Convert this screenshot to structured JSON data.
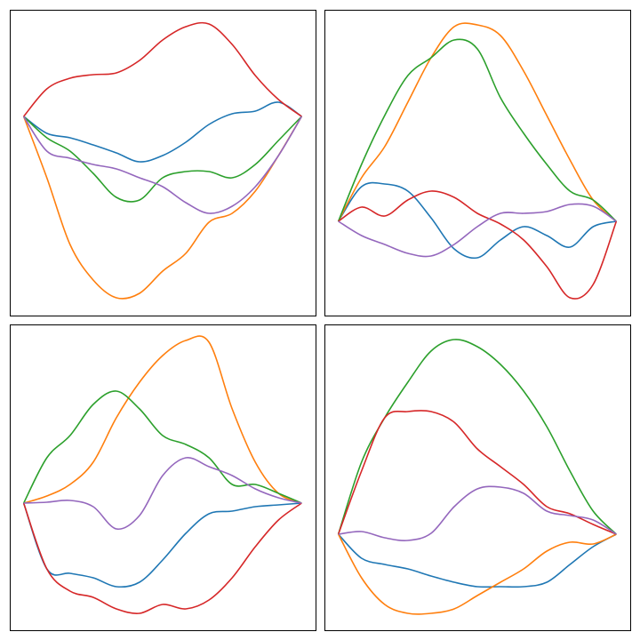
{
  "chart_data": [
    {
      "type": "line",
      "x": [
        0,
        1,
        2,
        3,
        4,
        5,
        6,
        7,
        8,
        9,
        10,
        11,
        12
      ],
      "xlim": [
        -0.6,
        12.6
      ],
      "ylim": [
        -22.4,
        12
      ],
      "series": [
        {
          "color": "#1f77b4",
          "values": [
            0,
            -1.9,
            -2.4,
            -3.2,
            -4.1,
            -5.1,
            -4.4,
            -2.9,
            -0.9,
            0.3,
            0.6,
            1.6,
            0
          ]
        },
        {
          "color": "#ff7f0e",
          "values": [
            0,
            -6.9,
            -14.4,
            -18.4,
            -20.4,
            -19.9,
            -17.4,
            -15.4,
            -11.9,
            -10.9,
            -8.4,
            -4.4,
            0
          ]
        },
        {
          "color": "#2ca02c",
          "values": [
            0,
            -2.4,
            -3.9,
            -6.4,
            -9.1,
            -9.4,
            -6.9,
            -6.2,
            -6.2,
            -6.9,
            -5.4,
            -2.7,
            0
          ]
        },
        {
          "color": "#d62728",
          "values": [
            0,
            3.1,
            4.3,
            4.7,
            4.9,
            6.3,
            8.6,
            10.1,
            10.4,
            8.1,
            4.6,
            1.9,
            0
          ]
        },
        {
          "color": "#9467bd",
          "values": [
            0,
            -3.9,
            -4.7,
            -5.4,
            -5.9,
            -6.9,
            -7.9,
            -9.7,
            -10.9,
            -10.1,
            -7.9,
            -4.4,
            0
          ]
        }
      ]
    },
    {
      "type": "line",
      "x": [
        0,
        1,
        2,
        3,
        4,
        5,
        6,
        7,
        8,
        9,
        10,
        11,
        12
      ],
      "xlim": [
        -0.6,
        12.6
      ],
      "ylim": [
        -10.6,
        23.8
      ],
      "series": [
        {
          "color": "#1f77b4",
          "values": [
            0,
            3.9,
            4.2,
            3.4,
            0.4,
            -3.1,
            -4.1,
            -2.1,
            -0.6,
            -1.6,
            -2.9,
            -0.6,
            0
          ]
        },
        {
          "color": "#ff7f0e",
          "values": [
            0,
            4.9,
            8.4,
            13.4,
            18.4,
            21.9,
            22.1,
            20.9,
            16.9,
            11.9,
            6.9,
            2.4,
            0
          ]
        },
        {
          "color": "#2ca02c",
          "values": [
            0,
            6.4,
            11.9,
            16.4,
            18.4,
            20.4,
            19.4,
            13.9,
            9.9,
            6.4,
            3.4,
            2.4,
            0
          ]
        },
        {
          "color": "#d62728",
          "values": [
            0,
            1.6,
            0.6,
            2.4,
            3.4,
            2.7,
            0.9,
            -0.3,
            -2.1,
            -5.1,
            -8.6,
            -7.1,
            0
          ]
        },
        {
          "color": "#9467bd",
          "values": [
            0,
            -1.6,
            -2.6,
            -3.6,
            -3.9,
            -2.6,
            -0.6,
            0.9,
            0.9,
            1.1,
            1.9,
            1.7,
            0
          ]
        }
      ]
    },
    {
      "type": "line",
      "x": [
        0,
        1,
        2,
        3,
        4,
        5,
        6,
        7,
        8,
        9,
        10,
        11,
        12
      ],
      "xlim": [
        -0.6,
        12.6
      ],
      "ylim": [
        -14.3,
        20.1
      ],
      "series": [
        {
          "color": "#1f77b4",
          "values": [
            0,
            -7.4,
            -7.9,
            -8.4,
            -9.4,
            -8.9,
            -6.4,
            -3.4,
            -1.2,
            -0.9,
            -0.4,
            -0.2,
            0
          ]
        },
        {
          "color": "#ff7f0e",
          "values": [
            0,
            0.8,
            2.1,
            4.6,
            9.6,
            13.6,
            16.6,
            18.3,
            18.1,
            10.6,
            4.6,
            1.1,
            0
          ]
        },
        {
          "color": "#2ca02c",
          "values": [
            0,
            5.1,
            7.6,
            11.1,
            12.6,
            10.6,
            7.6,
            6.6,
            5.1,
            2.1,
            2.1,
            1.1,
            0
          ]
        },
        {
          "color": "#d62728",
          "values": [
            0,
            -7.4,
            -9.9,
            -10.6,
            -11.9,
            -12.4,
            -11.4,
            -11.9,
            -10.9,
            -8.4,
            -4.9,
            -1.9,
            0
          ]
        },
        {
          "color": "#9467bd",
          "values": [
            0,
            0.1,
            0.3,
            -0.4,
            -2.9,
            -1.4,
            3.1,
            5.1,
            4.1,
            3.1,
            1.6,
            0.6,
            0
          ]
        }
      ]
    },
    {
      "type": "line",
      "x": [
        0,
        1,
        2,
        3,
        4,
        5,
        6,
        7,
        8,
        9,
        10,
        11,
        12
      ],
      "xlim": [
        -0.6,
        12.6
      ],
      "ylim": [
        -10.8,
        23.6
      ],
      "series": [
        {
          "color": "#1f77b4",
          "values": [
            0,
            -2.7,
            -3.4,
            -3.9,
            -4.7,
            -5.4,
            -5.9,
            -5.9,
            -5.9,
            -5.4,
            -3.4,
            -1.4,
            0
          ]
        },
        {
          "color": "#ff7f0e",
          "values": [
            0,
            -4.9,
            -7.9,
            -8.9,
            -8.9,
            -8.4,
            -6.9,
            -5.4,
            -3.9,
            -1.9,
            -0.9,
            -1.1,
            0
          ]
        },
        {
          "color": "#2ca02c",
          "values": [
            0,
            8.1,
            13.1,
            17.1,
            20.6,
            21.9,
            21.1,
            19.1,
            16.1,
            12.1,
            7.1,
            2.6,
            0
          ]
        },
        {
          "color": "#d62728",
          "values": [
            0,
            7.1,
            13.1,
            13.8,
            13.8,
            12.6,
            9.6,
            7.6,
            5.6,
            3.1,
            2.3,
            1.1,
            0
          ]
        },
        {
          "color": "#9467bd",
          "values": [
            0,
            0.3,
            -0.4,
            -0.7,
            0.1,
            3.1,
            5.1,
            5.3,
            4.6,
            2.6,
            2.1,
            1.6,
            0
          ]
        }
      ]
    }
  ]
}
